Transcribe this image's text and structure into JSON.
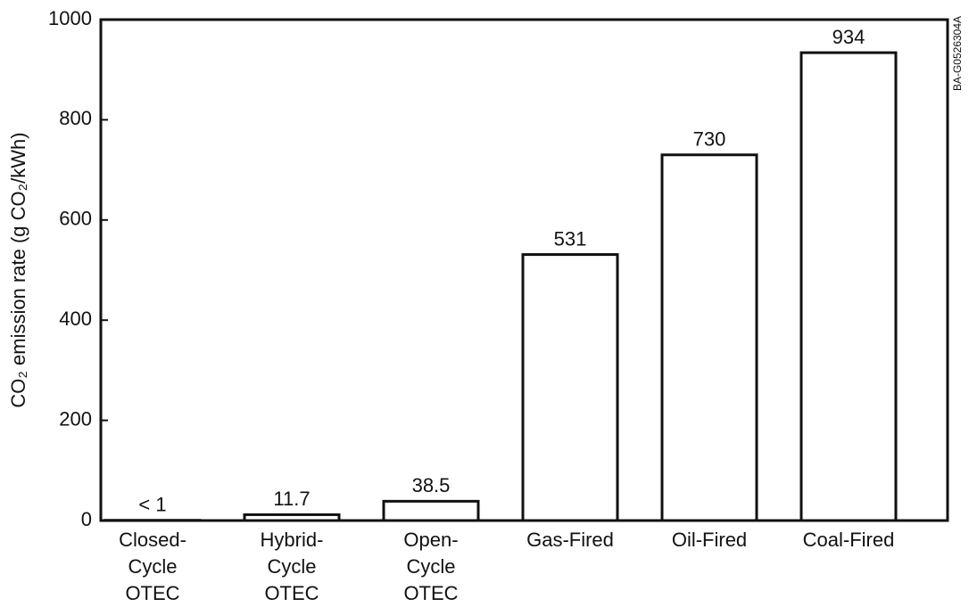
{
  "chart_data": {
    "type": "bar",
    "y_axis_label": "CO₂ emission rate (g CO₂/kWh)",
    "side_note": "BA-G0526304A",
    "categories": [
      [
        "Closed-",
        "Cycle",
        "OTEC"
      ],
      [
        "Hybrid-",
        "Cycle",
        "OTEC"
      ],
      [
        "Open-",
        "Cycle",
        "OTEC"
      ],
      [
        "Gas-Fired"
      ],
      [
        "Oil-Fired"
      ],
      [
        "Coal-Fired"
      ]
    ],
    "values": [
      0.5,
      11.7,
      38.5,
      531,
      730,
      934
    ],
    "value_labels": [
      "< 1",
      "11.7",
      "38.5",
      "531",
      "730",
      "934"
    ],
    "color": "#ffffff",
    "ylim": [
      0,
      1000
    ],
    "yticks": [
      0,
      200,
      400,
      600,
      800,
      1000
    ]
  }
}
